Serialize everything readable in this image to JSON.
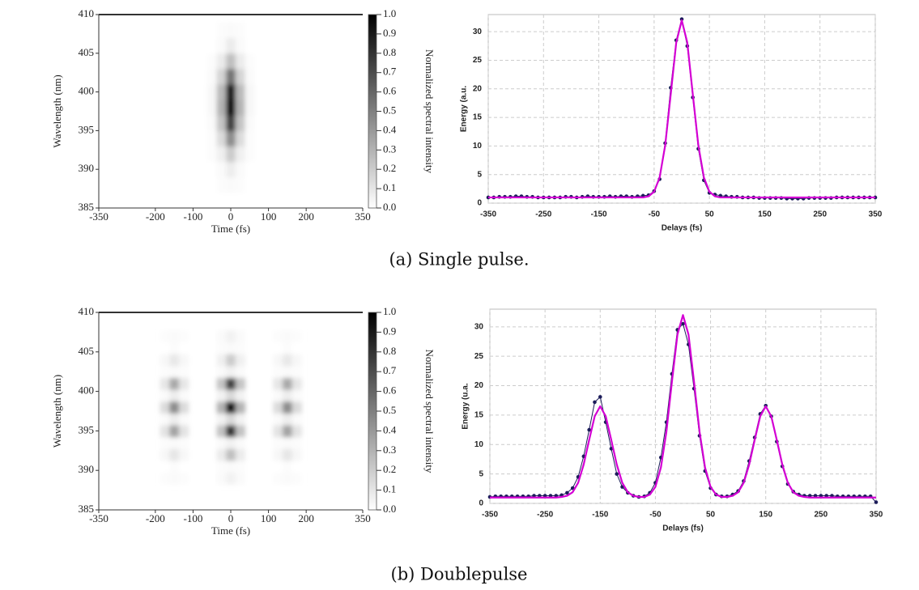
{
  "chart_data": [
    {
      "type": "heatmap",
      "xlabel": "Time (fs)",
      "ylabel": "Wavelength (nm)",
      "colorbar_label": "Normalized spectral intensity",
      "xlim": [
        -350,
        350
      ],
      "xticks": [
        -350,
        -200,
        -100,
        0,
        100,
        200,
        350
      ],
      "ylim": [
        385,
        410
      ],
      "yticks": [
        385,
        390,
        395,
        400,
        405,
        410
      ],
      "clim": [
        0,
        1
      ],
      "cticks": [
        {
          "value": 0,
          "label": "0.0"
        },
        0.1,
        0.2,
        0.3,
        0.4,
        0.5,
        0.6,
        0.7,
        0.8,
        0.9,
        {
          "value": 1,
          "label": "1.0"
        }
      ],
      "x": [
        -50,
        -25,
        0,
        25,
        50
      ],
      "y": [
        388,
        390,
        392,
        394,
        396,
        398,
        400,
        402,
        404,
        406,
        408
      ],
      "z": [
        [
          0,
          0.01,
          0.02,
          0.01,
          0
        ],
        [
          0,
          0.02,
          0.07,
          0.02,
          0
        ],
        [
          0.01,
          0.06,
          0.2,
          0.06,
          0.01
        ],
        [
          0.01,
          0.14,
          0.45,
          0.14,
          0.01
        ],
        [
          0.02,
          0.23,
          0.75,
          0.23,
          0.02
        ],
        [
          0.03,
          0.3,
          1,
          0.3,
          0.03
        ],
        [
          0.03,
          0.27,
          0.9,
          0.27,
          0.03
        ],
        [
          0.02,
          0.17,
          0.55,
          0.17,
          0.02
        ],
        [
          0.01,
          0.08,
          0.25,
          0.08,
          0.01
        ],
        [
          0,
          0.02,
          0.08,
          0.02,
          0
        ],
        [
          0,
          0.01,
          0.02,
          0.01,
          0
        ]
      ]
    },
    {
      "type": "line",
      "xlabel": "Delays (fs)",
      "ylabel": "Energy (a.u.",
      "xlim": [
        -350,
        350
      ],
      "xticks": [
        -350,
        -250,
        -150,
        -50,
        50,
        150,
        250,
        350
      ],
      "ylim": [
        0,
        33
      ],
      "yticks": [
        0,
        5,
        10,
        15,
        20,
        25,
        30
      ],
      "grid": true,
      "x": [
        -350,
        -340,
        -330,
        -320,
        -310,
        -300,
        -290,
        -280,
        -270,
        -260,
        -250,
        -240,
        -230,
        -220,
        -210,
        -200,
        -190,
        -180,
        -170,
        -160,
        -150,
        -140,
        -130,
        -120,
        -110,
        -100,
        -90,
        -80,
        -70,
        -60,
        -50,
        -40,
        -30,
        -20,
        -10,
        0,
        10,
        20,
        30,
        40,
        50,
        60,
        70,
        80,
        90,
        100,
        110,
        120,
        130,
        140,
        150,
        160,
        170,
        180,
        190,
        200,
        210,
        220,
        230,
        240,
        250,
        260,
        270,
        280,
        290,
        300,
        310,
        320,
        330,
        340,
        350
      ],
      "series": [
        {
          "color": "#1c1c5a",
          "marker": true,
          "values": [
            1.0,
            1.0,
            1.1,
            1.1,
            1.1,
            1.2,
            1.2,
            1.1,
            1.1,
            1.0,
            1.0,
            1.0,
            1.0,
            1.0,
            1.1,
            1.1,
            1.0,
            1.1,
            1.2,
            1.1,
            1.1,
            1.1,
            1.2,
            1.1,
            1.2,
            1.2,
            1.1,
            1.2,
            1.3,
            1.4,
            2.1,
            4.2,
            10.5,
            20.2,
            28.5,
            32.2,
            27.5,
            18.5,
            9.5,
            4.0,
            1.8,
            1.5,
            1.3,
            1.2,
            1.1,
            1.1,
            1.0,
            1.0,
            1.0,
            0.9,
            0.9,
            0.9,
            0.9,
            0.9,
            0.8,
            0.8,
            0.8,
            0.8,
            0.9,
            0.9,
            0.9,
            0.9,
            0.9,
            1.0,
            1.0,
            1.0,
            1.0,
            1.0,
            1.0,
            1.0,
            1.0
          ]
        },
        {
          "color": "#d400d4",
          "values": [
            1,
            1,
            1,
            1,
            1,
            1,
            1,
            1,
            1,
            1,
            1,
            1,
            1,
            1,
            1,
            1,
            1,
            1,
            1,
            1,
            1,
            1,
            1,
            1,
            1,
            1,
            1,
            1,
            1,
            1.2,
            2,
            4.5,
            10.1,
            19,
            28.1,
            32,
            28.1,
            19,
            10.1,
            4.5,
            2,
            1.2,
            1,
            1,
            1,
            1,
            1,
            1,
            1,
            1,
            1,
            1,
            1,
            1,
            1,
            1,
            1,
            1,
            1,
            1,
            1,
            1,
            1,
            1,
            1,
            1,
            1,
            1,
            1,
            1,
            1
          ]
        }
      ]
    },
    {
      "type": "heatmap",
      "xlabel": "Time (fs)",
      "ylabel": "Wavelength (nm)",
      "colorbar_label": "Normalized spectral intensity",
      "xlim": [
        -350,
        350
      ],
      "xticks": [
        -350,
        -200,
        -100,
        0,
        100,
        200,
        350
      ],
      "ylim": [
        385,
        410
      ],
      "yticks": [
        385,
        390,
        395,
        400,
        405,
        410
      ],
      "clim": [
        0,
        1
      ],
      "cticks": [
        {
          "value": 0,
          "label": "0.0"
        },
        0.1,
        0.2,
        0.3,
        0.4,
        0.5,
        0.6,
        0.7,
        0.8,
        0.9,
        {
          "value": 1,
          "label": "1.0"
        }
      ],
      "x": [
        -175,
        -150,
        -125,
        -25,
        0,
        25,
        125,
        150,
        175
      ],
      "y": [
        389,
        390.5,
        392,
        393.5,
        395,
        396.5,
        398,
        399.5,
        401,
        402.5,
        404,
        405.5,
        407
      ],
      "z": [
        [
          0.01,
          0.02,
          0.01,
          0.02,
          0.05,
          0.02,
          0.01,
          0.02,
          0.01
        ],
        [
          0,
          0.01,
          0,
          0.01,
          0.02,
          0.01,
          0,
          0.01,
          0
        ],
        [
          0.03,
          0.1,
          0.03,
          0.08,
          0.25,
          0.08,
          0.03,
          0.1,
          0.03
        ],
        [
          0.01,
          0.02,
          0.01,
          0.02,
          0.05,
          0.02,
          0.01,
          0.02,
          0.01
        ],
        [
          0.11,
          0.36,
          0.11,
          0.24,
          0.8,
          0.24,
          0.11,
          0.36,
          0.11
        ],
        [
          0.02,
          0.07,
          0.02,
          0.05,
          0.15,
          0.05,
          0.02,
          0.07,
          0.02
        ],
        [
          0.14,
          0.45,
          0.14,
          0.3,
          1,
          0.3,
          0.14,
          0.45,
          0.14
        ],
        [
          0.02,
          0.07,
          0.02,
          0.05,
          0.15,
          0.05,
          0.02,
          0.07,
          0.02
        ],
        [
          0.1,
          0.34,
          0.1,
          0.23,
          0.75,
          0.23,
          0.1,
          0.34,
          0.1
        ],
        [
          0.01,
          0.02,
          0.01,
          0.02,
          0.05,
          0.02,
          0.01,
          0.02,
          0.01
        ],
        [
          0.03,
          0.09,
          0.03,
          0.06,
          0.2,
          0.06,
          0.03,
          0.09,
          0.03
        ],
        [
          0,
          0.01,
          0,
          0.01,
          0.02,
          0.01,
          0,
          0.01,
          0
        ],
        [
          0.01,
          0.02,
          0.01,
          0.02,
          0.05,
          0.02,
          0.01,
          0.02,
          0.01
        ]
      ]
    },
    {
      "type": "line",
      "xlabel": "Delays (fs)",
      "ylabel": "Energy (u.a.",
      "xlim": [
        -350,
        350
      ],
      "xticks": [
        -350,
        -250,
        -150,
        -50,
        50,
        150,
        250,
        350
      ],
      "ylim": [
        0,
        33
      ],
      "yticks": [
        0,
        5,
        10,
        15,
        20,
        25,
        30
      ],
      "grid": true,
      "x": [
        -350,
        -340,
        -330,
        -320,
        -310,
        -300,
        -290,
        -280,
        -270,
        -260,
        -250,
        -240,
        -230,
        -220,
        -210,
        -200,
        -190,
        -180,
        -170,
        -160,
        -150,
        -140,
        -130,
        -120,
        -110,
        -100,
        -90,
        -80,
        -70,
        -60,
        -50,
        -40,
        -30,
        -20,
        -10,
        0,
        10,
        20,
        30,
        40,
        50,
        60,
        70,
        80,
        90,
        100,
        110,
        120,
        130,
        140,
        150,
        160,
        170,
        180,
        190,
        200,
        210,
        220,
        230,
        240,
        250,
        260,
        270,
        280,
        290,
        300,
        310,
        320,
        330,
        340,
        350
      ],
      "series": [
        {
          "color": "#1c1c5a",
          "marker": true,
          "values": [
            1.1,
            1.2,
            1.2,
            1.2,
            1.2,
            1.2,
            1.2,
            1.2,
            1.3,
            1.3,
            1.3,
            1.3,
            1.3,
            1.4,
            1.8,
            2.6,
            4.5,
            8.0,
            12.5,
            17.2,
            18.1,
            13.8,
            9.3,
            5.0,
            2.8,
            1.8,
            1.3,
            1.1,
            1.2,
            1.8,
            3.5,
            7.8,
            13.8,
            22.0,
            29.5,
            30.5,
            27.0,
            19.5,
            11.5,
            5.5,
            2.6,
            1.5,
            1.2,
            1.2,
            1.5,
            2.1,
            3.8,
            7.2,
            11.2,
            15.2,
            16.6,
            14.8,
            10.5,
            6.3,
            3.3,
            2.0,
            1.5,
            1.3,
            1.3,
            1.3,
            1.3,
            1.3,
            1.3,
            1.2,
            1.2,
            1.2,
            1.2,
            1.2,
            1.2,
            1.2,
            0.2
          ]
        },
        {
          "color": "#d400d4",
          "values": [
            1,
            1,
            1,
            1,
            1,
            1,
            1,
            1,
            1,
            1,
            1,
            1,
            1,
            1.1,
            1.3,
            1.9,
            3.5,
            6.6,
            10.8,
            14.8,
            16.5,
            14.8,
            10.8,
            6.6,
            3.5,
            1.9,
            1.3,
            1.1,
            1.1,
            1.5,
            2.8,
            6.1,
            12.2,
            20.7,
            28.7,
            32,
            28.7,
            20.7,
            12.2,
            6.1,
            2.8,
            1.5,
            1.1,
            1.1,
            1.3,
            1.9,
            3.5,
            6.6,
            10.8,
            14.8,
            16.5,
            14.8,
            10.8,
            6.6,
            3.5,
            1.9,
            1.3,
            1.1,
            1,
            1,
            1,
            1,
            1,
            1,
            1,
            1,
            1,
            1,
            1,
            1,
            1
          ]
        }
      ]
    }
  ],
  "captions": [
    "(a) Single pulse.",
    "(b) Doublepulse"
  ]
}
